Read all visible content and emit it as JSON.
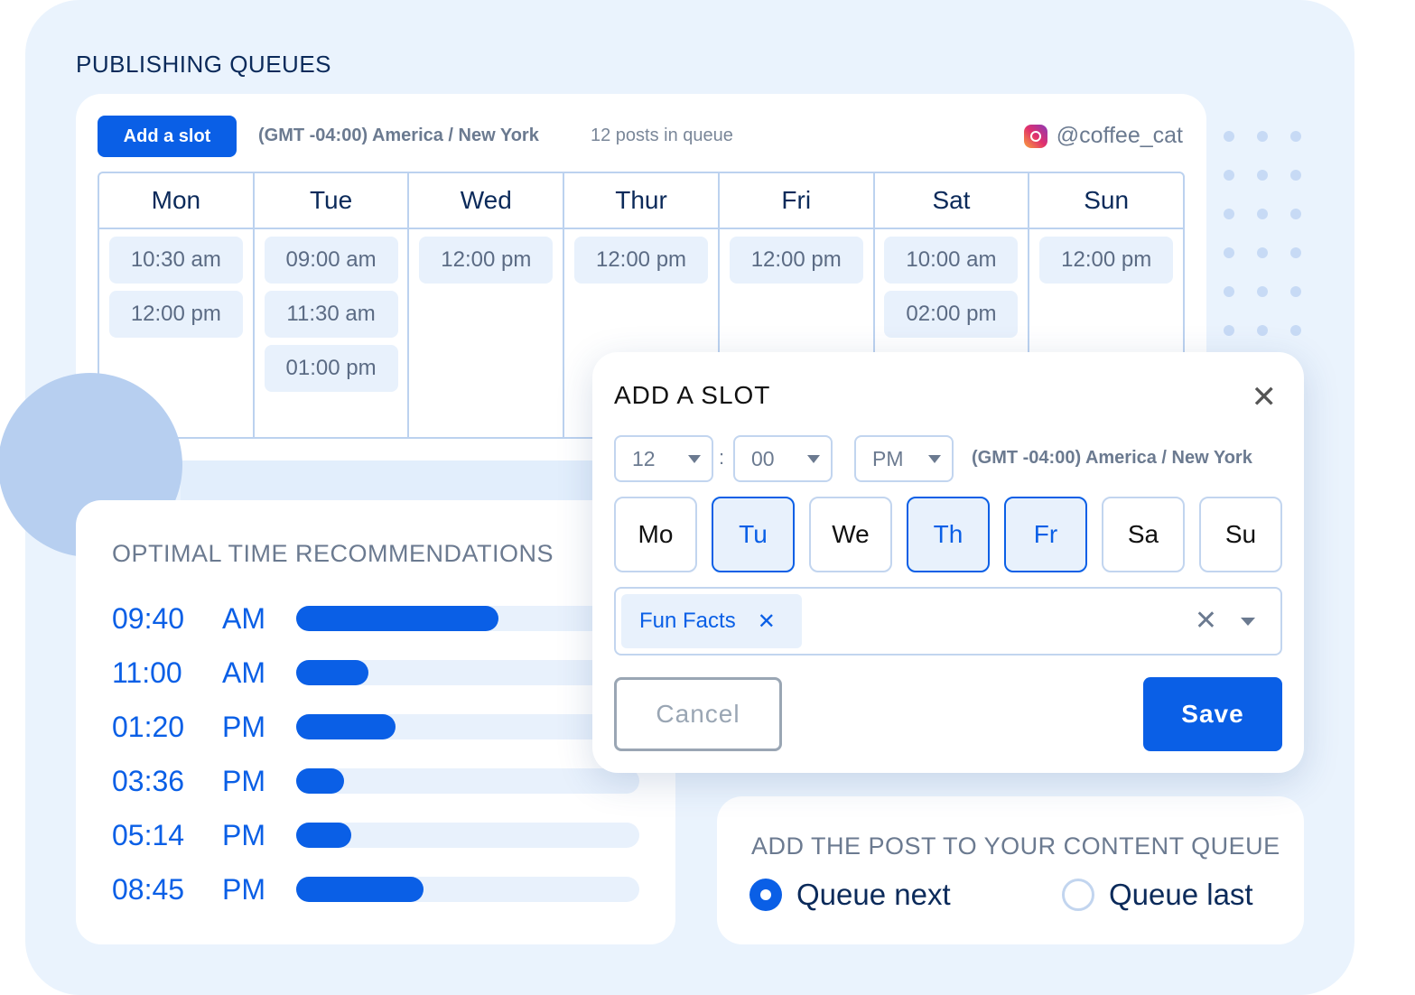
{
  "page_title": "PUBLISHING QUEUES",
  "queue": {
    "add_slot_label": "Add a slot",
    "timezone": "(GMT -04:00) America / New York",
    "posts_count": "12 posts in queue",
    "account": "@coffee_cat",
    "account_icon": "instagram-icon",
    "days": [
      {
        "name": "Mon",
        "slots": [
          "10:30 am",
          "12:00 pm"
        ]
      },
      {
        "name": "Tue",
        "slots": [
          "09:00 am",
          "11:30 am",
          "01:00 pm"
        ]
      },
      {
        "name": "Wed",
        "slots": [
          "12:00 pm"
        ]
      },
      {
        "name": "Thur",
        "slots": [
          "12:00 pm"
        ]
      },
      {
        "name": "Fri",
        "slots": [
          "12:00 pm"
        ]
      },
      {
        "name": "Sat",
        "slots": [
          "10:00 am",
          "02:00 pm"
        ]
      },
      {
        "name": "Sun",
        "slots": [
          "12:00 pm"
        ]
      }
    ]
  },
  "recommendations": {
    "title": "OPTIMAL TIME RECOMMENDATIONS",
    "items": [
      {
        "time": "09:40",
        "period": "AM",
        "score": 0.59
      },
      {
        "time": "11:00",
        "period": "AM",
        "score": 0.21
      },
      {
        "time": "01:20",
        "period": "PM",
        "score": 0.29
      },
      {
        "time": "03:36",
        "period": "PM",
        "score": 0.14
      },
      {
        "time": "05:14",
        "period": "PM",
        "score": 0.16
      },
      {
        "time": "08:45",
        "period": "PM",
        "score": 0.37
      }
    ]
  },
  "modal": {
    "title": "ADD A SLOT",
    "hour": "12",
    "separator": ":",
    "minute": "00",
    "period": "PM",
    "timezone": "(GMT -04:00) America / New York",
    "days": [
      {
        "label": "Mo",
        "selected": false
      },
      {
        "label": "Tu",
        "selected": true
      },
      {
        "label": "We",
        "selected": false
      },
      {
        "label": "Th",
        "selected": true
      },
      {
        "label": "Fr",
        "selected": true
      },
      {
        "label": "Sa",
        "selected": false
      },
      {
        "label": "Su",
        "selected": false
      }
    ],
    "tags": [
      "Fun Facts"
    ],
    "cancel_label": "Cancel",
    "save_label": "Save"
  },
  "content_queue": {
    "title": "ADD THE POST TO YOUR CONTENT QUEUE",
    "options": [
      {
        "label": "Queue next",
        "selected": true
      },
      {
        "label": "Queue last",
        "selected": false
      }
    ]
  },
  "colors": {
    "accent": "#0a5fe6",
    "background": "#eaf3fd",
    "heading": "#0b2a5a"
  }
}
